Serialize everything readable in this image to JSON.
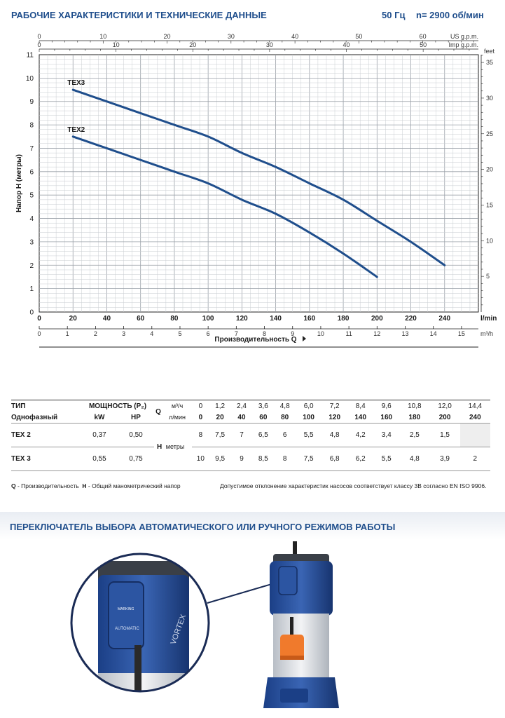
{
  "header": {
    "title": "РАБОЧИЕ ХАРАКТЕРИСТИКИ И ТЕХНИЧЕСКИЕ ДАННЫЕ",
    "freq": "50 Гц",
    "speed": "n= 2900 об/мин"
  },
  "chart_data": {
    "type": "line",
    "xlabel": "Производительность Q",
    "ylabel": "Напор H (метры)",
    "xlim": [
      0,
      260
    ],
    "ylim": [
      0,
      11
    ],
    "x_unit": "l/min",
    "x_ticks": [
      0,
      20,
      40,
      60,
      80,
      100,
      120,
      140,
      160,
      180,
      200,
      220,
      240
    ],
    "y_ticks": [
      0,
      1,
      2,
      3,
      4,
      5,
      6,
      7,
      8,
      9,
      10,
      11
    ],
    "top_scale_us": {
      "unit": "US g.p.m.",
      "ticks": [
        0,
        10,
        20,
        30,
        40,
        50,
        60
      ],
      "factor": 3.785
    },
    "top_scale_imp": {
      "unit": "Imp g.p.m.",
      "ticks": [
        0,
        10,
        20,
        30,
        40,
        50
      ],
      "factor": 4.546
    },
    "right_scale_feet": {
      "unit": "feet",
      "ticks": [
        5,
        10,
        15,
        20,
        25,
        30,
        35
      ]
    },
    "bottom_scale_m3h": {
      "unit": "m³/h",
      "ticks": [
        0,
        1,
        2,
        3,
        4,
        5,
        6,
        7,
        8,
        9,
        10,
        11,
        12,
        13,
        14,
        15
      ]
    },
    "series": [
      {
        "name": "TEX3",
        "x": [
          20,
          40,
          60,
          80,
          100,
          120,
          140,
          160,
          180,
          200,
          220,
          240
        ],
        "y": [
          9.5,
          9,
          8.5,
          8,
          7.5,
          6.8,
          6.2,
          5.5,
          4.8,
          3.9,
          3.0,
          2
        ]
      },
      {
        "name": "TEX2",
        "x": [
          20,
          40,
          60,
          80,
          100,
          120,
          140,
          160,
          180,
          200
        ],
        "y": [
          7.5,
          7,
          6.5,
          6,
          5.5,
          4.8,
          4.2,
          3.4,
          2.5,
          1.5
        ]
      }
    ]
  },
  "table": {
    "type_label": "ТИП",
    "phase_label": "Однофазный",
    "power_label": "МОЩНОСТЬ (P₂)",
    "kw": "kW",
    "hp": "HP",
    "q_letter": "Q",
    "q_unit1": "м³/ч",
    "q_unit2": "л/мин",
    "h_letter": "H",
    "h_unit": "метры",
    "q_m3h": [
      "0",
      "1,2",
      "2,4",
      "3,6",
      "4,8",
      "6,0",
      "7,2",
      "8,4",
      "9,6",
      "10,8",
      "12,0",
      "14,4"
    ],
    "q_lmin": [
      "0",
      "20",
      "40",
      "60",
      "80",
      "100",
      "120",
      "140",
      "160",
      "180",
      "200",
      "240"
    ],
    "rows": [
      {
        "name": "TEX 2",
        "kw": "0,37",
        "hp": "0,50",
        "h": [
          "8",
          "7,5",
          "7",
          "6,5",
          "6",
          "5,5",
          "4,8",
          "4,2",
          "3,4",
          "2,5",
          "1,5",
          ""
        ]
      },
      {
        "name": "TEX 3",
        "kw": "0,55",
        "hp": "0,75",
        "h": [
          "10",
          "9,5",
          "9",
          "8,5",
          "8",
          "7,5",
          "6,8",
          "6,2",
          "5,5",
          "4,8",
          "3,9",
          "2"
        ]
      }
    ]
  },
  "footnote": {
    "q_bold": "Q",
    "q_text": " - Производительность",
    "h_bold": "H",
    "h_text": " - Общий манометрический напор",
    "right": "Допустимое отклонение характеристик насосов соответствует классу 3B согласно EN ISO 9906."
  },
  "section2": {
    "title": "ПЕРЕКЛЮЧАТЕЛЬ ВЫБОРА АВТОМАТИЧЕСКОГО ИЛИ РУЧНОГО РЕЖИМОВ РАБОТЫ",
    "logo_text": "MARKING",
    "switch_text": "AUTOMATIC",
    "vortex_text": "VORTEX"
  }
}
